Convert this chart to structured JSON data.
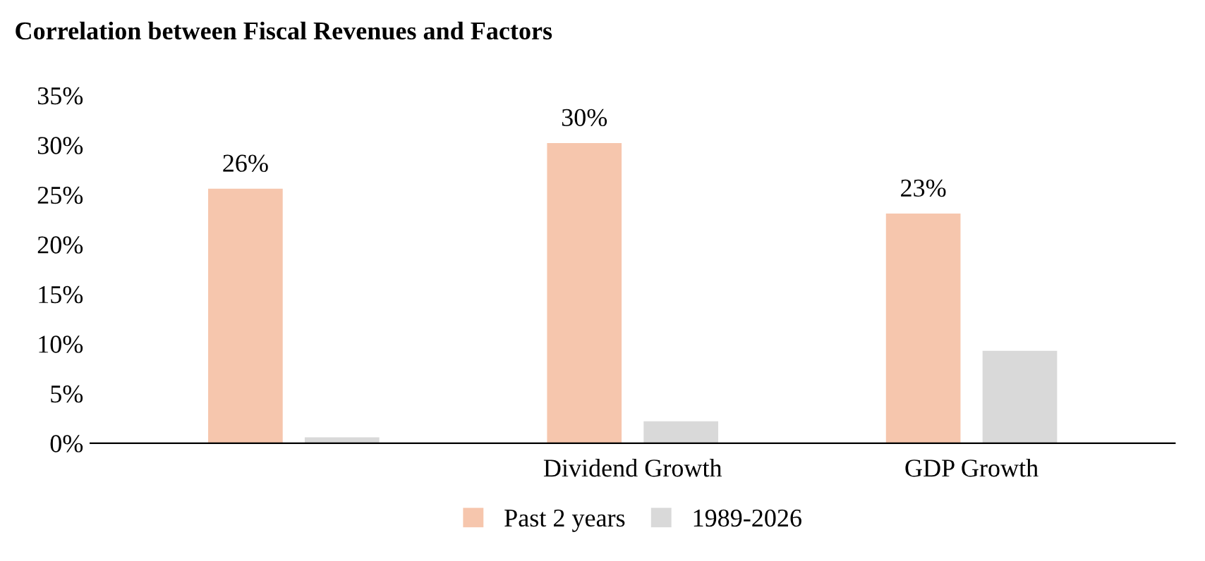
{
  "chart_data": {
    "type": "bar",
    "title": "Correlation between Fiscal Revenues and Factors",
    "categories": [
      null,
      "Dividend Growth",
      "GDP Growth"
    ],
    "series": [
      {
        "name": "Past 2 years",
        "color": "#f6c6ad",
        "values": [
          25.6,
          30.2,
          23.1
        ],
        "value_labels": [
          "26%",
          "30%",
          "23%"
        ]
      },
      {
        "name": "1989-2026",
        "color": "#d9d9d9",
        "values": [
          0.6,
          2.2,
          9.3
        ]
      }
    ],
    "ylim": [
      0,
      35
    ],
    "yticks": [
      {
        "value": 0,
        "label": "0%"
      },
      {
        "value": 5,
        "label": "5%"
      },
      {
        "value": 10,
        "label": "10%"
      },
      {
        "value": 15,
        "label": "15%"
      },
      {
        "value": 20,
        "label": "20%"
      },
      {
        "value": 25,
        "label": "25%"
      },
      {
        "value": 30,
        "label": "30%"
      },
      {
        "value": 35,
        "label": "35%"
      }
    ],
    "grid": false,
    "legend": "bottom"
  }
}
